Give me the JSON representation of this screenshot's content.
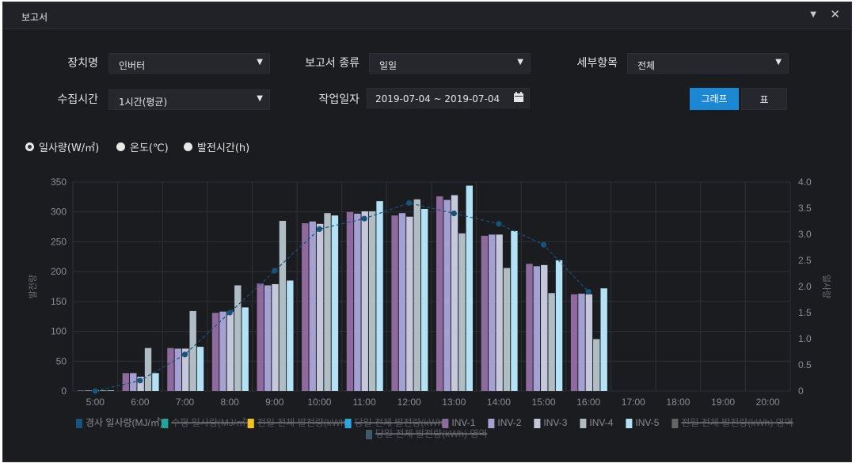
{
  "window": {
    "title": "보고서"
  },
  "filters": {
    "device_label": "장치명",
    "device_value": "인버터",
    "report_type_label": "보고서 종류",
    "report_type_value": "일일",
    "detail_label": "세부항목",
    "detail_value": "전체",
    "collect_label": "수집시간",
    "collect_value": "1시간(평균)",
    "workdate_label": "작업일자",
    "workdate_value": "2019-07-04 ~ 2019-07-04",
    "graph_button": "그래프",
    "table_button": "표"
  },
  "radios": [
    {
      "label": "일사량(W/㎡)",
      "selected": true
    },
    {
      "label": "온도(℃)",
      "selected": false
    },
    {
      "label": "발전시간(h)",
      "selected": false
    }
  ],
  "colors": {
    "inv1": "#8e6a9e",
    "inv2": "#a5a0d4",
    "inv3": "#c5c8da",
    "inv4": "#aebec4",
    "inv5": "#b3e2f6",
    "line": "#16537e"
  },
  "chart_data": {
    "type": "bar",
    "categories": [
      "5:00",
      "6:00",
      "7:00",
      "8:00",
      "9:00",
      "10:00",
      "11:00",
      "12:00",
      "13:00",
      "14:00",
      "15:00",
      "16:00",
      "17:00",
      "18:00",
      "19:00",
      "20:00"
    ],
    "ylabel": "발전량",
    "y2label": "일사량",
    "ylim": [
      0,
      350
    ],
    "y2lim": [
      0,
      4.0
    ],
    "yticks": [
      "0",
      "50",
      "100",
      "150",
      "200",
      "250",
      "300",
      "350"
    ],
    "y2ticks": [
      "0",
      "0.5",
      "1.0",
      "1.5",
      "2.0",
      "2.5",
      "3.0",
      "3.5",
      "4.0"
    ],
    "grid": true,
    "series": [
      {
        "name": "INV-1",
        "values": [
          1,
          30,
          72,
          131,
          180,
          281,
          300,
          294,
          326,
          260,
          213,
          162,
          0,
          0,
          0,
          0
        ]
      },
      {
        "name": "INV-2",
        "values": [
          1,
          30,
          71,
          133,
          177,
          284,
          297,
          298,
          320,
          262,
          209,
          163,
          0,
          0,
          0,
          0
        ]
      },
      {
        "name": "INV-3",
        "values": [
          1,
          24,
          71,
          133,
          179,
          280,
          301,
          292,
          328,
          262,
          211,
          162,
          0,
          0,
          0,
          0
        ]
      },
      {
        "name": "INV-4",
        "values": [
          1,
          72,
          134,
          177,
          285,
          298,
          301,
          321,
          264,
          206,
          164,
          87,
          0,
          0,
          0,
          0
        ]
      },
      {
        "name": "INV-5",
        "values": [
          1,
          30,
          74,
          140,
          185,
          294,
          318,
          305,
          344,
          268,
          219,
          172,
          0,
          0,
          0,
          0
        ]
      }
    ],
    "line_series": {
      "name": "경사 일사량(MJ/㎡)",
      "values": [
        0,
        0.2,
        0.7,
        1.5,
        2.3,
        3.1,
        3.3,
        3.6,
        3.4,
        3.2,
        2.8,
        1.9,
        null,
        null,
        null,
        null
      ]
    },
    "legend": [
      {
        "label": "경사 일사량(MJ/㎡)",
        "color": "#16537e",
        "hidden": false
      },
      {
        "label": "수평 일사량(MJ/㎡)",
        "color": "#1aa89a",
        "hidden": true
      },
      {
        "label": "전일 전체 발전량(kWh)",
        "color": "#f0c419",
        "hidden": true
      },
      {
        "label": "당일 전체 발전량(kWh)",
        "color": "#29a8e0",
        "hidden": true
      },
      {
        "label": "INV-1",
        "color": "#8e6a9e",
        "hidden": false
      },
      {
        "label": "INV-2",
        "color": "#a5a0d4",
        "hidden": false
      },
      {
        "label": "INV-3",
        "color": "#c5c8da",
        "hidden": false
      },
      {
        "label": "INV-4",
        "color": "#aebec4",
        "hidden": false
      },
      {
        "label": "INV-5",
        "color": "#b3e2f6",
        "hidden": false
      },
      {
        "label": "전일 전체 발전량(kWh) 영역",
        "color": "#666666",
        "hidden": true
      },
      {
        "label": "당일 전체 발전량(kWh) 영역",
        "color": "#3e5a66",
        "hidden": true
      }
    ],
    "legend_placement": "bottom"
  }
}
